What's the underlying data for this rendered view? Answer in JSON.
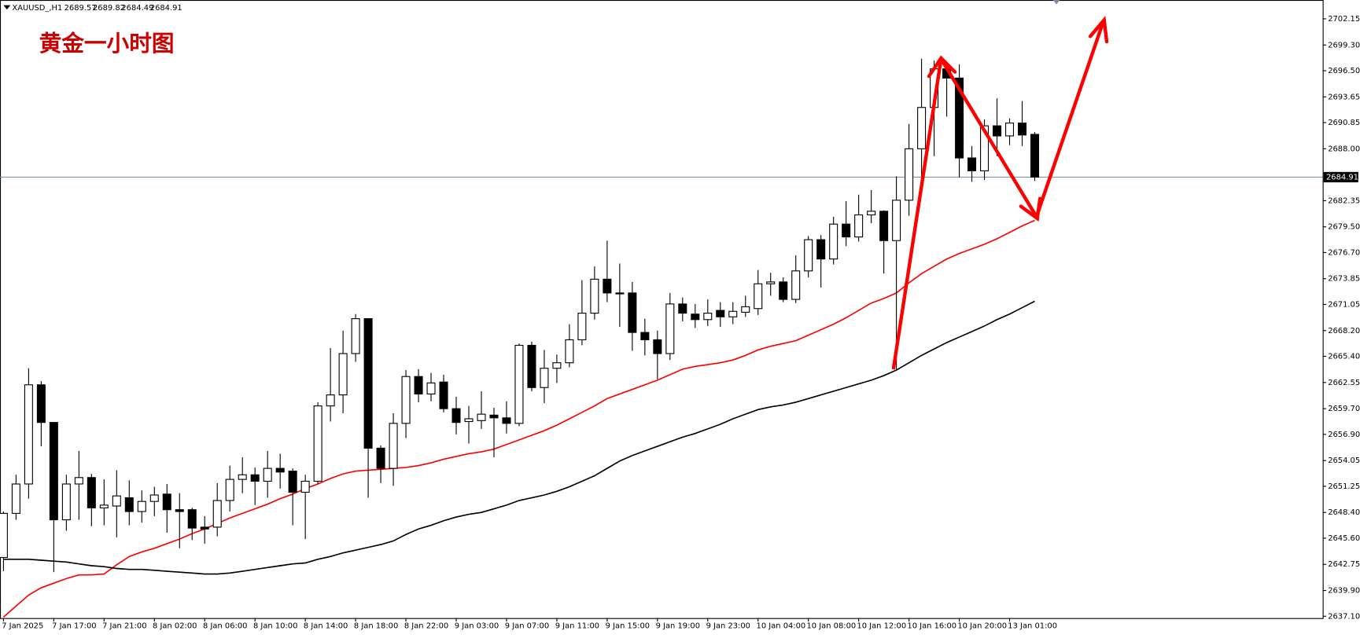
{
  "chart_data": {
    "type": "candlestick",
    "symbol": "XAUUSD_,H1",
    "title": "黄金一小时图",
    "categories": [
      "7 Jan 2025",
      null,
      null,
      null,
      "7 Jan 17:00",
      null,
      null,
      null,
      "7 Jan 21:00",
      null,
      null,
      null,
      "8 Jan 02:00",
      null,
      null,
      null,
      "8 Jan 06:00",
      null,
      null,
      null,
      "8 Jan 10:00",
      null,
      null,
      null,
      "8 Jan 14:00",
      null,
      null,
      null,
      "8 Jan 18:00",
      null,
      null,
      null,
      "8 Jan 22:00",
      null,
      null,
      null,
      "9 Jan 03:00",
      null,
      null,
      null,
      "9 Jan 07:00",
      null,
      null,
      null,
      "9 Jan 11:00",
      null,
      null,
      null,
      "9 Jan 15:00",
      null,
      null,
      null,
      "9 Jan 19:00",
      null,
      null,
      null,
      "9 Jan 23:00",
      null,
      null,
      null,
      "10 Jan 04:00",
      null,
      null,
      null,
      "10 Jan 08:00",
      null,
      null,
      null,
      "10 Jan 12:00",
      null,
      null,
      null,
      "10 Jan 16:00",
      null,
      null,
      null,
      "10 Jan 20:00",
      null,
      null,
      null,
      "13 Jan 01:00",
      null,
      null
    ],
    "open": [
      2643.5,
      2648.3,
      2651.5,
      2662.3,
      2658.2,
      2647.6,
      2651.5,
      2652.2,
      2648.9,
      2649.1,
      2650.0,
      2648.5,
      2649.6,
      2650.4,
      2648.7,
      2648.7,
      2646.8,
      2646.8,
      2649.7,
      2652.0,
      2652.5,
      2651.8,
      2653.2,
      2652.9,
      2650.6,
      2651.8,
      2660.0,
      2661.2,
      2665.7,
      2669.5,
      2655.4,
      2653.2,
      2658.1,
      2663.2,
      2661.3,
      2662.6,
      2659.7,
      2658.3,
      2658.4,
      2659.0,
      2658.7,
      2658.1,
      2666.6,
      2662.0,
      2664.1,
      2664.7,
      2667.2,
      2670.1,
      2673.8,
      2672.3,
      2672.3,
      2668.0,
      2667.2,
      2665.7,
      2671.1,
      2670.0,
      2669.4,
      2670.4,
      2669.7,
      2670.2,
      2670.6,
      2673.3,
      2673.5,
      2671.6,
      2674.7,
      2678.1,
      2676.0,
      2679.8,
      2678.4,
      2680.8,
      2681.2,
      2678.0,
      2682.4,
      2688.0,
      2692.5,
      2696.7,
      2695.7,
      2687.0,
      2685.6,
      2690.5,
      2689.4,
      2690.8,
      2689.57
    ],
    "high": [
      2648.5,
      2652.5,
      2664.1,
      2662.7,
      2658.2,
      2652.5,
      2655.1,
      2652.6,
      2652.0,
      2653.0,
      2651.9,
      2650.8,
      2651.2,
      2651.5,
      2650.5,
      2648.9,
      2648.0,
      2651.6,
      2653.5,
      2654.4,
      2653.3,
      2655.1,
      2654.8,
      2653.2,
      2652.5,
      2660.4,
      2666.3,
      2668.2,
      2670.0,
      2669.5,
      2655.7,
      2659.2,
      2663.9,
      2664.0,
      2663.6,
      2663.4,
      2661.0,
      2660.0,
      2661.6,
      2659.8,
      2660.5,
      2666.8,
      2667.0,
      2666.1,
      2665.6,
      2668.9,
      2673.7,
      2675.2,
      2678.0,
      2675.5,
      2673.5,
      2669.5,
      2668.2,
      2672.3,
      2671.8,
      2671.1,
      2671.6,
      2671.3,
      2671.3,
      2672.0,
      2674.8,
      2674.5,
      2674.0,
      2676.4,
      2678.5,
      2678.6,
      2680.6,
      2682.3,
      2683.0,
      2683.5,
      2681.3,
      2685.0,
      2690.7,
      2697.8,
      2697.6,
      2697.0,
      2697.2,
      2688.3,
      2691.2,
      2693.5,
      2691.3,
      2693.2,
      2689.82
    ],
    "low": [
      2642.0,
      2647.6,
      2649.9,
      2655.6,
      2641.9,
      2646.4,
      2647.6,
      2646.9,
      2647.0,
      2645.7,
      2647.0,
      2647.3,
      2648.0,
      2646.2,
      2644.5,
      2645.4,
      2645.0,
      2645.8,
      2648.5,
      2650.5,
      2649.2,
      2650.0,
      2651.0,
      2647.0,
      2645.5,
      2651.5,
      2658.3,
      2659.2,
      2664.8,
      2650.0,
      2651.6,
      2651.3,
      2656.5,
      2660.4,
      2660.5,
      2659.3,
      2656.9,
      2655.9,
      2657.5,
      2654.4,
      2657.0,
      2657.8,
      2661.6,
      2660.3,
      2662.5,
      2664.2,
      2666.6,
      2669.4,
      2671.3,
      2668.6,
      2666.0,
      2665.5,
      2662.9,
      2665.0,
      2669.2,
      2668.5,
      2668.7,
      2668.6,
      2668.9,
      2669.7,
      2669.9,
      2672.0,
      2671.3,
      2671.2,
      2674.0,
      2672.9,
      2675.4,
      2677.4,
      2677.9,
      2679.9,
      2674.4,
      2664.0,
      2680.7,
      2684.7,
      2687.2,
      2691.5,
      2684.9,
      2684.4,
      2684.6,
      2687.2,
      2688.4,
      2688.3,
      2684.49
    ],
    "close": [
      2648.3,
      2651.5,
      2662.3,
      2658.2,
      2647.6,
      2651.5,
      2652.2,
      2648.9,
      2649.2,
      2650.2,
      2648.5,
      2649.6,
      2650.3,
      2648.7,
      2648.5,
      2646.7,
      2646.6,
      2649.7,
      2652.0,
      2652.5,
      2651.8,
      2653.2,
      2652.8,
      2650.6,
      2651.8,
      2660.0,
      2661.2,
      2665.7,
      2669.5,
      2655.4,
      2653.2,
      2658.1,
      2663.2,
      2661.3,
      2662.5,
      2659.7,
      2658.2,
      2658.6,
      2659.1,
      2658.7,
      2658.1,
      2666.6,
      2662.0,
      2664.1,
      2664.7,
      2667.2,
      2670.1,
      2673.8,
      2672.3,
      2672.2,
      2668.0,
      2667.2,
      2665.7,
      2671.1,
      2670.1,
      2669.4,
      2670.1,
      2669.7,
      2670.3,
      2670.8,
      2673.3,
      2673.5,
      2671.6,
      2674.7,
      2678.1,
      2676.0,
      2679.8,
      2678.4,
      2680.8,
      2681.2,
      2678.0,
      2682.4,
      2688.0,
      2692.5,
      2696.7,
      2695.7,
      2687.0,
      2685.6,
      2690.5,
      2689.4,
      2690.8,
      2689.5,
      2684.91
    ],
    "bull_color": "#ffffff",
    "bear_color": "#000000",
    "wick_color": "#000000",
    "series": [
      {
        "color": "#ff0000",
        "values": [
          2637.0,
          2638.2,
          2639.4,
          2640.2,
          2640.7,
          2641.2,
          2641.6,
          2641.6,
          2641.7,
          2642.7,
          2643.6,
          2644.1,
          2644.5,
          2645.0,
          2645.5,
          2646.1,
          2646.6,
          2647.2,
          2647.8,
          2648.3,
          2648.8,
          2649.3,
          2649.9,
          2650.4,
          2651.0,
          2651.5,
          2652.1,
          2652.6,
          2652.9,
          2653.0,
          2653.1,
          2653.2,
          2653.3,
          2653.5,
          2653.8,
          2654.2,
          2654.5,
          2654.8,
          2655.0,
          2655.3,
          2655.8,
          2656.3,
          2656.8,
          2657.3,
          2657.9,
          2658.6,
          2659.3,
          2660.0,
          2660.8,
          2661.3,
          2661.8,
          2662.3,
          2662.8,
          2663.4,
          2664.0,
          2664.3,
          2664.5,
          2664.7,
          2665.0,
          2665.5,
          2666.1,
          2666.5,
          2666.8,
          2667.1,
          2667.7,
          2668.3,
          2668.9,
          2669.6,
          2670.4,
          2671.2,
          2671.7,
          2672.3,
          2673.4,
          2674.4,
          2675.2,
          2676.0,
          2676.6,
          2677.1,
          2677.6,
          2678.2,
          2678.9,
          2679.6,
          2680.2
        ]
      },
      {
        "color": "#000000",
        "values": [
          2643.3,
          2643.3,
          2643.3,
          2643.2,
          2643.1,
          2643.0,
          2642.8,
          2642.6,
          2642.5,
          2642.3,
          2642.2,
          2642.2,
          2642.1,
          2642.0,
          2641.9,
          2641.8,
          2641.7,
          2641.7,
          2641.8,
          2642.0,
          2642.2,
          2642.4,
          2642.6,
          2642.8,
          2642.9,
          2643.3,
          2643.6,
          2644.0,
          2644.3,
          2644.6,
          2644.9,
          2645.3,
          2646.0,
          2646.6,
          2647.0,
          2647.5,
          2647.9,
          2648.2,
          2648.4,
          2648.8,
          2649.2,
          2649.7,
          2650.0,
          2650.3,
          2650.7,
          2651.2,
          2651.8,
          2652.4,
          2653.2,
          2654.0,
          2654.6,
          2655.1,
          2655.6,
          2656.1,
          2656.6,
          2657.0,
          2657.5,
          2658.0,
          2658.6,
          2659.1,
          2659.6,
          2659.9,
          2660.1,
          2660.4,
          2660.8,
          2661.2,
          2661.6,
          2662.0,
          2662.4,
          2662.8,
          2663.3,
          2663.9,
          2664.7,
          2665.5,
          2666.2,
          2666.9,
          2667.5,
          2668.1,
          2668.7,
          2669.4,
          2670.0,
          2670.7,
          2671.4
        ]
      }
    ],
    "ylim": [
      2636.9,
      2704.2
    ],
    "yticks": [
      {
        "value": 2702.15,
        "label": "2702.15"
      },
      {
        "value": 2699.3,
        "label": "2699.30"
      },
      {
        "value": 2696.5,
        "label": "2696.50"
      },
      {
        "value": 2693.65,
        "label": "2693.65"
      },
      {
        "value": 2690.85,
        "label": "2690.85"
      },
      {
        "value": 2688.0,
        "label": "2688.00"
      },
      {
        "value": 2682.35,
        "label": "2682.35"
      },
      {
        "value": 2679.5,
        "label": "2679.50"
      },
      {
        "value": 2676.7,
        "label": "2676.70"
      },
      {
        "value": 2673.85,
        "label": "2673.85"
      },
      {
        "value": 2671.05,
        "label": "2671.05"
      },
      {
        "value": 2668.2,
        "label": "2668.20"
      },
      {
        "value": 2665.4,
        "label": "2665.40"
      },
      {
        "value": 2662.55,
        "label": "2662.55"
      },
      {
        "value": 2659.7,
        "label": "2659.70"
      },
      {
        "value": 2656.9,
        "label": "2656.90"
      },
      {
        "value": 2654.05,
        "label": "2654.05"
      },
      {
        "value": 2651.25,
        "label": "2651.25"
      },
      {
        "value": 2648.4,
        "label": "2648.40"
      },
      {
        "value": 2645.6,
        "label": "2645.60"
      },
      {
        "value": 2642.75,
        "label": "2642.75"
      },
      {
        "value": 2639.9,
        "label": "2639.90"
      },
      {
        "value": 2637.1,
        "label": "2637.10"
      }
    ],
    "grid": false
  }
}
